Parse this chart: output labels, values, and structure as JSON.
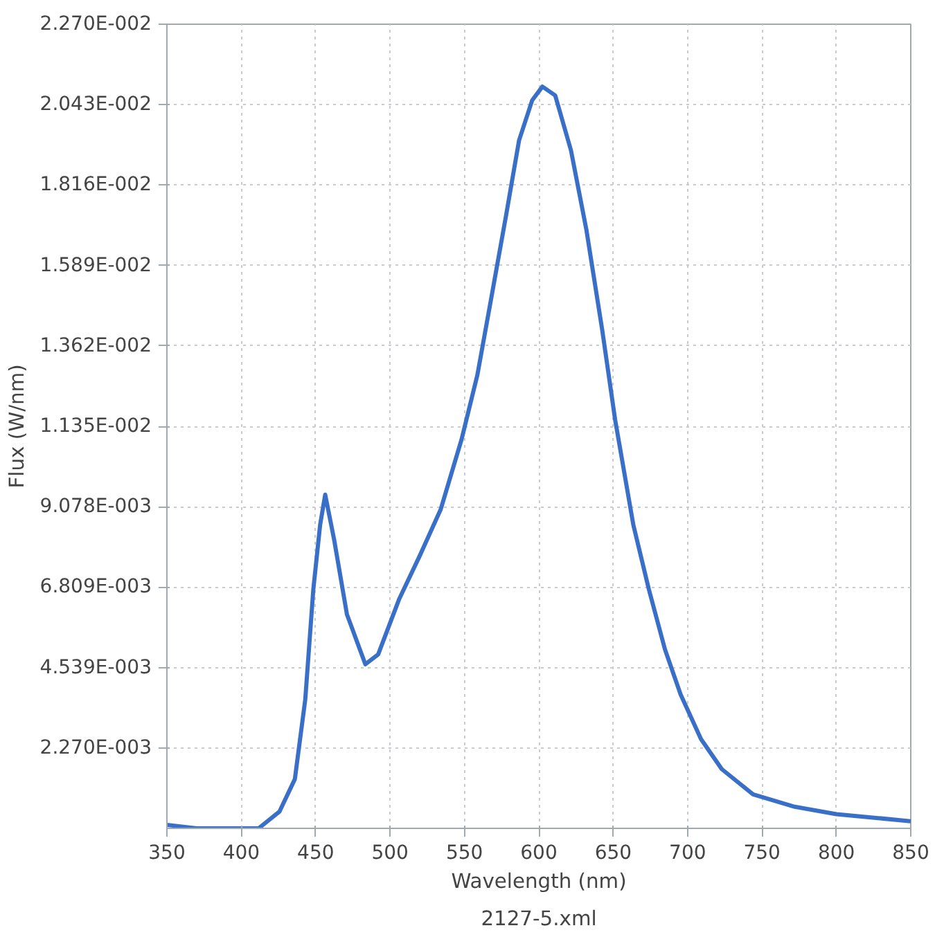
{
  "chart_data": {
    "type": "line",
    "xlabel": "Wavelength (nm)",
    "ylabel": "Flux (W/nm)",
    "annotations": [
      "2127-5.xml"
    ],
    "series": [
      {
        "color": "#3a6fc8",
        "x": [
          350,
          370,
          400,
          411.6,
          425.6,
          436,
          443,
          448.4,
          453,
          456.4,
          462.4,
          471,
          483.4,
          492,
          506,
          520,
          534,
          548,
          558.7,
          569,
          578,
          586.7,
          595.5,
          602.4,
          611,
          621.6,
          632,
          642.6,
          651.3,
          663.5,
          674,
          684.8,
          695.3,
          709,
          723,
          744,
          772,
          800,
          828,
          850
        ],
        "values": [
          0.0001,
          0,
          0,
          0,
          0.00047,
          0.00139,
          0.00364,
          0.00674,
          0.00857,
          0.00942,
          0.00815,
          0.00604,
          0.00463,
          0.00491,
          0.00646,
          0.0077,
          0.009,
          0.01097,
          0.0128,
          0.0152,
          0.01731,
          0.01942,
          0.02055,
          0.02094,
          0.02069,
          0.01914,
          0.01689,
          0.01407,
          0.01153,
          0.00857,
          0.00674,
          0.00505,
          0.00378,
          0.00252,
          0.00167,
          0.00096,
          0.00061,
          0.0004,
          0.00029,
          0.0002
        ]
      }
    ],
    "xlim": [
      350,
      850
    ],
    "ylim": [
      0,
      0.0227
    ],
    "xticks": [
      350,
      400,
      450,
      500,
      550,
      600,
      650,
      700,
      750,
      800,
      850
    ],
    "yticks": [
      {
        "value": 0.00227,
        "label": "2.270E-003"
      },
      {
        "value": 0.004539,
        "label": "4.539E-003"
      },
      {
        "value": 0.006809,
        "label": "6.809E-003"
      },
      {
        "value": 0.009078,
        "label": "9.078E-003"
      },
      {
        "value": 0.01135,
        "label": "1.135E-002"
      },
      {
        "value": 0.01362,
        "label": "1.362E-002"
      },
      {
        "value": 0.01589,
        "label": "1.589E-002"
      },
      {
        "value": 0.01816,
        "label": "1.816E-002"
      },
      {
        "value": 0.02043,
        "label": "2.043E-002"
      },
      {
        "value": 0.0227,
        "label": "2.270E-002"
      }
    ],
    "grid": true,
    "line_style": "solid",
    "marker": "none"
  }
}
